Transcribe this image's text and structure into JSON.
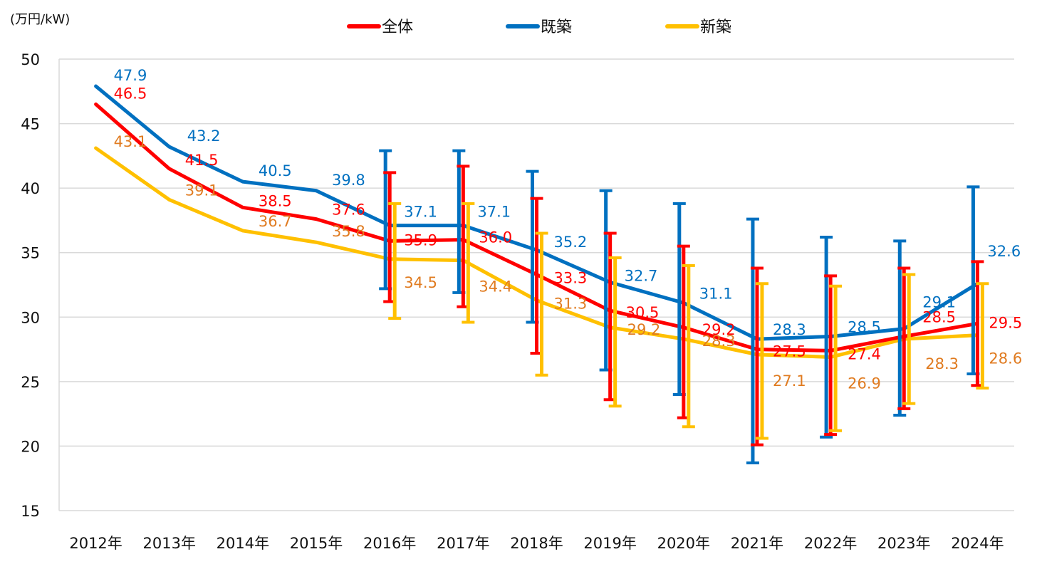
{
  "chart_data": {
    "type": "line",
    "title": "",
    "ylabel": "(万円/kW)",
    "xlabel": "",
    "ylim": [
      15,
      50
    ],
    "yticks": [
      15,
      20,
      25,
      30,
      35,
      40,
      45,
      50
    ],
    "grid": true,
    "legend_position": "top",
    "categories": [
      "2012年",
      "2013年",
      "2014年",
      "2015年",
      "2016年",
      "2017年",
      "2018年",
      "2019年",
      "2020年",
      "2021年",
      "2022年",
      "2023年",
      "2024年"
    ],
    "series": [
      {
        "name": "全体",
        "color": "#FF0000",
        "label_color": "#FF0000",
        "values": [
          46.5,
          41.5,
          38.5,
          37.6,
          35.9,
          36.0,
          33.3,
          30.5,
          29.2,
          27.5,
          27.4,
          28.5,
          29.5
        ],
        "error_high": [
          null,
          null,
          null,
          null,
          41.2,
          41.7,
          39.2,
          36.5,
          35.5,
          33.8,
          33.2,
          33.8,
          34.3
        ],
        "error_low": [
          null,
          null,
          null,
          null,
          31.2,
          30.8,
          27.2,
          23.6,
          22.2,
          20.1,
          20.9,
          22.9,
          24.7
        ]
      },
      {
        "name": "既築",
        "color": "#0070C0",
        "label_color": "#0070C0",
        "values": [
          47.9,
          43.2,
          40.5,
          39.8,
          37.1,
          37.1,
          35.2,
          32.7,
          31.1,
          28.3,
          28.5,
          29.1,
          32.6
        ],
        "error_high": [
          null,
          null,
          null,
          null,
          42.9,
          42.9,
          41.3,
          39.8,
          38.8,
          37.6,
          36.2,
          35.9,
          40.1
        ],
        "error_low": [
          null,
          null,
          null,
          null,
          32.2,
          31.9,
          29.6,
          25.9,
          24.0,
          18.7,
          20.7,
          22.4,
          25.6
        ]
      },
      {
        "name": "新築",
        "color": "#FFC000",
        "label_color": "#E07B20",
        "values": [
          43.1,
          39.1,
          36.7,
          35.8,
          34.5,
          34.4,
          31.3,
          29.2,
          28.3,
          27.1,
          26.9,
          28.3,
          28.6
        ],
        "error_high": [
          null,
          null,
          null,
          null,
          38.8,
          38.8,
          36.5,
          34.6,
          34.0,
          32.6,
          32.4,
          33.3,
          32.6
        ],
        "error_low": [
          null,
          null,
          null,
          null,
          29.9,
          29.6,
          25.5,
          23.1,
          21.5,
          20.6,
          21.2,
          23.3,
          24.5
        ]
      }
    ],
    "data_labels": {
      "全体": [
        "46.5",
        "41.5",
        "38.5",
        "37.6",
        "35.9",
        "36.0",
        "33.3",
        "30.5",
        "29.2",
        "27.5",
        "27.4",
        "28.5",
        "29.5"
      ],
      "既築": [
        "47.9",
        "43.2",
        "40.5",
        "39.8",
        "37.1",
        "37.1",
        "35.2",
        "32.7",
        "31.1",
        "28.3",
        "28.5",
        "29.1",
        "32.6"
      ],
      "新築": [
        "43.1",
        "39.1",
        "36.7",
        "35.8",
        "34.5",
        "34.4",
        "31.3",
        "29.2",
        "28.3",
        "27.1",
        "26.9",
        "28.3",
        "28.6"
      ]
    }
  }
}
